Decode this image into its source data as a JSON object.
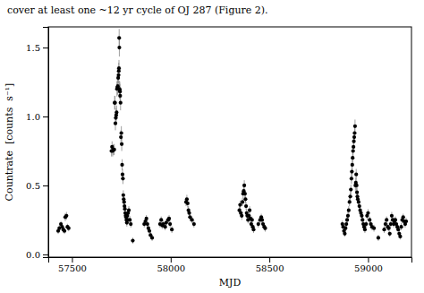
{
  "chart_data": {
    "type": "scatter",
    "title": "cover at least one ~12 yr cycle of OJ 287 (Figure 2).",
    "x_label": "MJD",
    "y_label": "Countrate  [counts  s⁻¹]",
    "xlim": [
      57380,
      59220
    ],
    "ylim": [
      -0.02,
      1.65
    ],
    "xticks": [
      57500,
      58000,
      58500,
      59000
    ],
    "yticks": [
      {
        "value": 0.0,
        "label": "0.0"
      },
      0.5,
      {
        "value": 1.0,
        "label": "1.0"
      },
      1.5
    ],
    "grid": false,
    "color": "#000000",
    "marker": "circle",
    "x": [
      57430,
      57436,
      57444,
      57450,
      57456,
      57462,
      57466,
      57472,
      57477,
      57483,
      57700,
      57703,
      57706,
      57710,
      57714,
      57716,
      57718,
      57720,
      57722,
      57724,
      57726,
      57728,
      57730,
      57732,
      57734,
      57736,
      57737,
      57738,
      57739,
      57740,
      57741,
      57742,
      57743,
      57744,
      57746,
      57748,
      57750,
      57752,
      57754,
      57756,
      57758,
      57760,
      57762,
      57764,
      57766,
      57768,
      57770,
      57772,
      57774,
      57776,
      57778,
      57780,
      57782,
      57784,
      57788,
      57793,
      57798,
      57808,
      57866,
      57872,
      57877,
      57882,
      57887,
      57892,
      57898,
      57906,
      57946,
      57952,
      57957,
      57962,
      57972,
      57977,
      57987,
      57992,
      57997,
      58006,
      58078,
      58082,
      58086,
      58090,
      58094,
      58098,
      58108,
      58118,
      58348,
      58352,
      58356,
      58360,
      58364,
      58367,
      58370,
      58373,
      58376,
      58379,
      58382,
      58385,
      58388,
      58392,
      58396,
      58400,
      58404,
      58408,
      58412,
      58416,
      58420,
      58444,
      58453,
      58459,
      58463,
      58468,
      58474,
      58479,
      58870,
      58874,
      58878,
      58882,
      58886,
      58890,
      58894,
      58898,
      58902,
      58906,
      58910,
      58913,
      58916,
      58918,
      58920,
      58922,
      58924,
      58926,
      58928,
      58930,
      58932,
      58934,
      58936,
      58938,
      58940,
      58942,
      58944,
      58946,
      58948,
      58952,
      58956,
      58960,
      58964,
      58968,
      58972,
      58976,
      58980,
      58984,
      58990,
      58995,
      59000,
      59008,
      59014,
      59020,
      59030,
      59052,
      59082,
      59088,
      59094,
      59100,
      59105,
      59110,
      59115,
      59120,
      59125,
      59130,
      59134,
      59138,
      59143,
      59148,
      59153,
      59158,
      59163,
      59168,
      59173,
      59178,
      59183,
      59188,
      59193
    ],
    "values": [
      0.17,
      0.19,
      0.22,
      0.2,
      0.18,
      0.17,
      0.27,
      0.28,
      0.2,
      0.19,
      0.75,
      0.78,
      0.75,
      0.76,
      0.76,
      1.1,
      1.1,
      0.95,
      0.99,
      1.01,
      1.03,
      1.2,
      1.21,
      1.22,
      1.28,
      1.3,
      1.33,
      1.35,
      1.57,
      1.5,
      1.2,
      1.19,
      1.18,
      1.15,
      1.1,
      0.85,
      0.88,
      0.8,
      0.65,
      0.58,
      0.55,
      0.43,
      0.4,
      0.38,
      0.35,
      0.33,
      0.3,
      0.28,
      0.27,
      0.25,
      0.23,
      0.28,
      0.25,
      0.3,
      0.32,
      0.25,
      0.22,
      0.1,
      0.22,
      0.24,
      0.26,
      0.22,
      0.19,
      0.17,
      0.14,
      0.12,
      0.22,
      0.25,
      0.21,
      0.22,
      0.2,
      0.23,
      0.25,
      0.26,
      0.22,
      0.18,
      0.38,
      0.4,
      0.37,
      0.32,
      0.3,
      0.27,
      0.25,
      0.22,
      0.32,
      0.36,
      0.3,
      0.28,
      0.38,
      0.44,
      0.46,
      0.5,
      0.44,
      0.4,
      0.35,
      0.3,
      0.28,
      0.25,
      0.28,
      0.32,
      0.26,
      0.22,
      0.25,
      0.2,
      0.18,
      0.22,
      0.25,
      0.27,
      0.25,
      0.22,
      0.2,
      0.19,
      0.22,
      0.2,
      0.17,
      0.15,
      0.19,
      0.22,
      0.25,
      0.28,
      0.32,
      0.38,
      0.42,
      0.47,
      0.55,
      0.6,
      0.65,
      0.7,
      0.75,
      0.78,
      0.82,
      0.85,
      0.88,
      0.93,
      0.5,
      0.52,
      0.58,
      0.5,
      0.45,
      0.42,
      0.4,
      0.38,
      0.35,
      0.32,
      0.3,
      0.28,
      0.25,
      0.22,
      0.2,
      0.18,
      0.22,
      0.28,
      0.3,
      0.25,
      0.22,
      0.2,
      0.19,
      0.12,
      0.18,
      0.22,
      0.25,
      0.2,
      0.19,
      0.15,
      0.22,
      0.28,
      0.25,
      0.22,
      0.24,
      0.25,
      0.22,
      0.2,
      0.18,
      0.15,
      0.13,
      0.2,
      0.25,
      0.27,
      0.24,
      0.22,
      0.24
    ],
    "errors": [
      0.022,
      0.022,
      0.022,
      0.022,
      0.022,
      0.022,
      0.028,
      0.028,
      0.022,
      0.022,
      0.04,
      0.04,
      0.04,
      0.04,
      0.04,
      0.05,
      0.05,
      0.05,
      0.05,
      0.05,
      0.05,
      0.055,
      0.055,
      0.055,
      0.06,
      0.06,
      0.06,
      0.06,
      0.065,
      0.065,
      0.06,
      0.06,
      0.055,
      0.055,
      0.055,
      0.05,
      0.05,
      0.05,
      0.04,
      0.04,
      0.04,
      0.035,
      0.035,
      0.03,
      0.03,
      0.03,
      0.03,
      0.03,
      0.03,
      0.03,
      0.028,
      0.03,
      0.03,
      0.03,
      0.03,
      0.03,
      0.025,
      0.022,
      0.025,
      0.025,
      0.025,
      0.025,
      0.025,
      0.025,
      0.022,
      0.022,
      0.025,
      0.025,
      0.025,
      0.025,
      0.025,
      0.025,
      0.025,
      0.025,
      0.025,
      0.025,
      0.03,
      0.032,
      0.03,
      0.03,
      0.03,
      0.028,
      0.025,
      0.025,
      0.03,
      0.03,
      0.03,
      0.03,
      0.03,
      0.032,
      0.032,
      0.038,
      0.032,
      0.032,
      0.03,
      0.03,
      0.028,
      0.025,
      0.028,
      0.03,
      0.028,
      0.025,
      0.025,
      0.025,
      0.025,
      0.025,
      0.025,
      0.025,
      0.025,
      0.025,
      0.025,
      0.025,
      0.025,
      0.025,
      0.025,
      0.022,
      0.025,
      0.025,
      0.028,
      0.03,
      0.03,
      0.03,
      0.032,
      0.035,
      0.038,
      0.04,
      0.04,
      0.04,
      0.04,
      0.04,
      0.042,
      0.042,
      0.045,
      0.048,
      0.038,
      0.038,
      0.04,
      0.038,
      0.035,
      0.032,
      0.032,
      0.03,
      0.03,
      0.03,
      0.028,
      0.028,
      0.025,
      0.025,
      0.025,
      0.025,
      0.025,
      0.028,
      0.028,
      0.025,
      0.025,
      0.025,
      0.025,
      0.022,
      0.025,
      0.025,
      0.025,
      0.025,
      0.025,
      0.022,
      0.025,
      0.028,
      0.025,
      0.025,
      0.025,
      0.025,
      0.025,
      0.025,
      0.025,
      0.022,
      0.022,
      0.025,
      0.025,
      0.025,
      0.025,
      0.025,
      0.025
    ]
  }
}
